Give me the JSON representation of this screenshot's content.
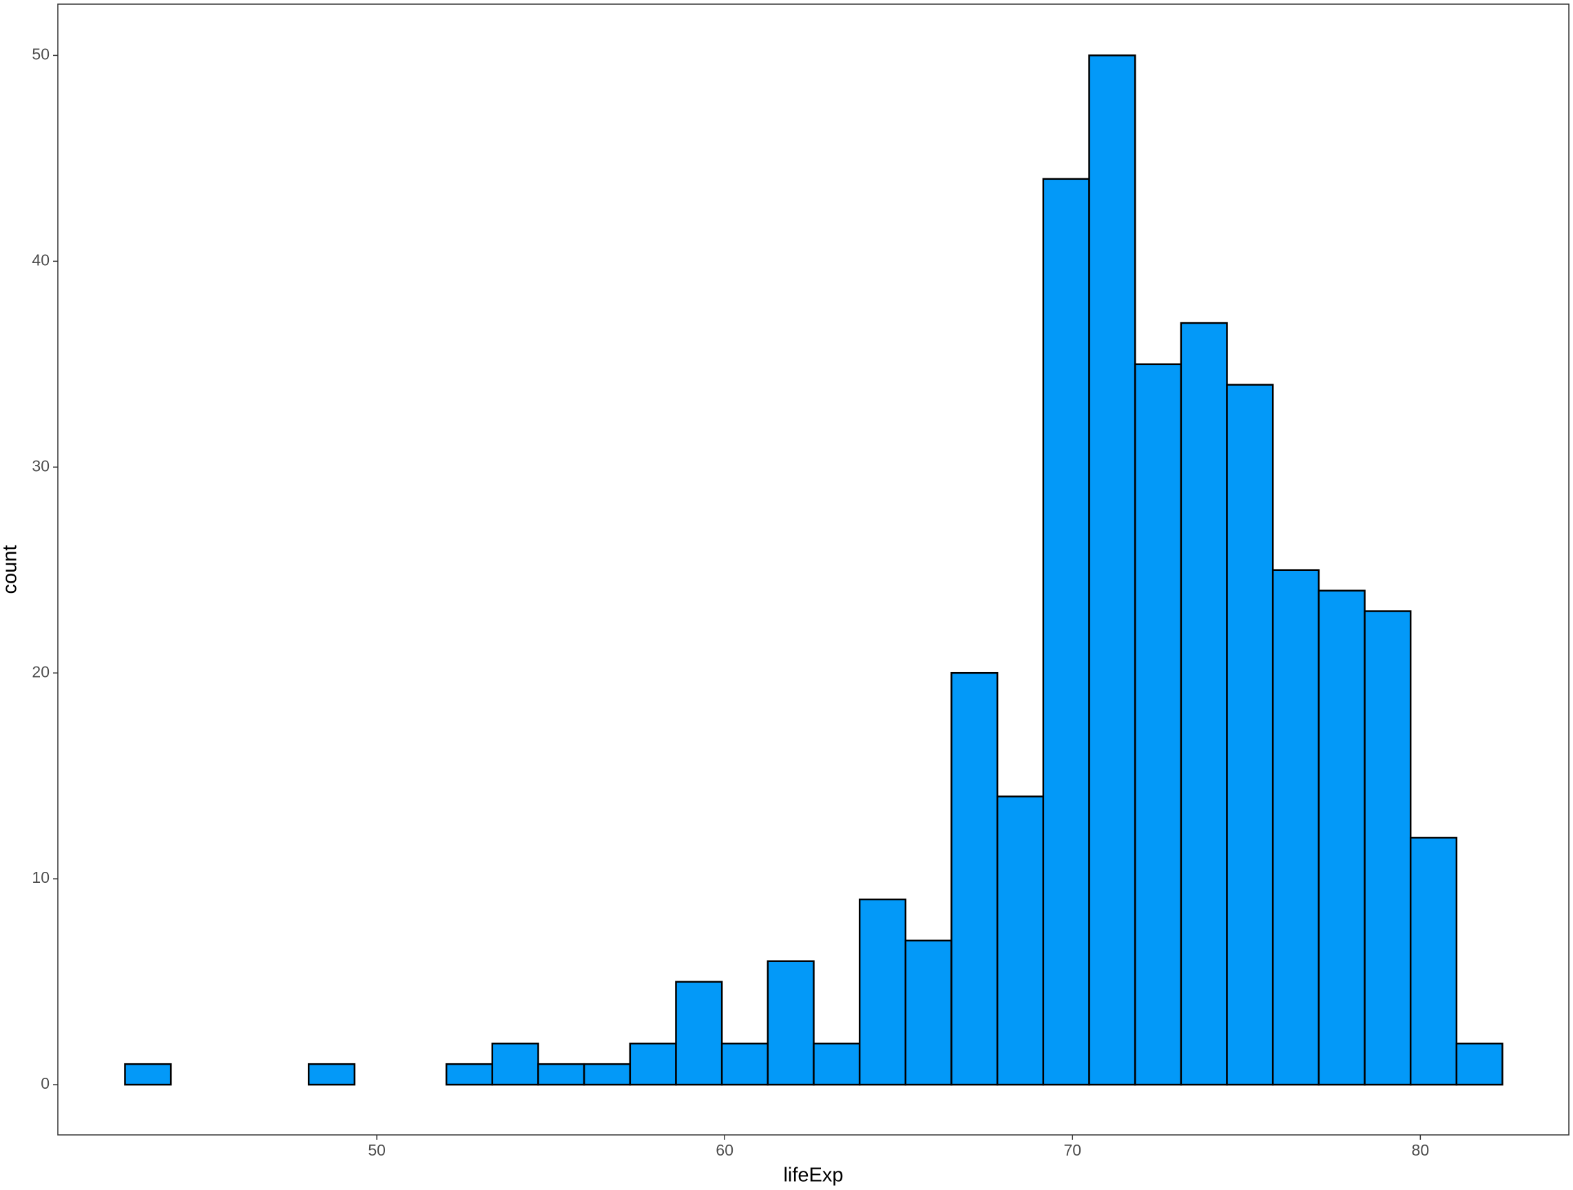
{
  "chart_data": {
    "type": "histogram",
    "x_label": "lifeExp",
    "y_label": "count",
    "bins": [
      42.76,
      44.08,
      45.4,
      46.72,
      48.04,
      49.36,
      50.68,
      52.0,
      53.32,
      54.64,
      55.96,
      57.28,
      58.6,
      59.92,
      61.24,
      62.56,
      63.88,
      65.2,
      66.52,
      67.84,
      69.16,
      70.48,
      71.8,
      73.12,
      74.44,
      75.76,
      77.08,
      78.4,
      79.72,
      81.04,
      82.36
    ],
    "values": [
      1,
      0,
      0,
      0,
      1,
      0,
      0,
      1,
      2,
      1,
      1,
      2,
      5,
      2,
      6,
      2,
      9,
      7,
      20,
      14,
      44,
      50,
      35,
      37,
      34,
      25,
      24,
      23,
      12,
      2
    ],
    "color": "#0399f8",
    "xlim": [
      40.83,
      84.27
    ],
    "xticks": [
      50,
      60,
      70,
      80
    ],
    "ylim": [
      -2.44,
      52.49
    ],
    "yticks": [
      0,
      10,
      20,
      30,
      40,
      50
    ],
    "grid": false
  }
}
